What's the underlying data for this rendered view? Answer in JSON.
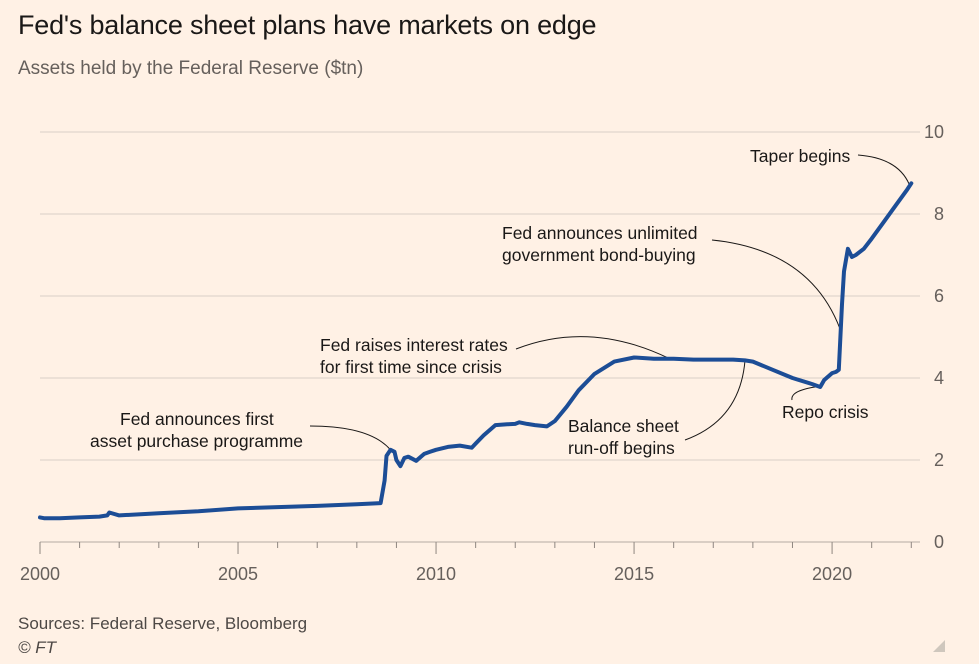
{
  "header": {
    "title": "Fed's balance sheet plans have markets on edge",
    "subtitle": "Assets held by the Federal Reserve ($tn)"
  },
  "footer": {
    "source": "Sources: Federal Reserve, Bloomberg",
    "copyright": "© FT"
  },
  "colors": {
    "background": "#fff1e5",
    "line": "#1c4d96",
    "gridline": "#d9d0c7",
    "axis_text": "#66605c",
    "annotation_text": "#1a1817"
  },
  "chart_data": {
    "type": "line",
    "title": "Fed's balance sheet plans have markets on edge",
    "subtitle": "Assets held by the Federal Reserve ($tn)",
    "xlim": [
      2000,
      2022.5
    ],
    "ylim": [
      0,
      10
    ],
    "x_ticks": [
      2000,
      2005,
      2010,
      2015,
      2020
    ],
    "x_tick_labels": [
      "2000",
      "2005",
      "2010",
      "2015",
      "2020"
    ],
    "y_ticks": [
      0,
      2,
      4,
      6,
      8,
      10
    ],
    "y_tick_labels": [
      "0",
      "2",
      "4",
      "6",
      "8",
      "10"
    ],
    "y_axis_position": "right",
    "grid": "horizontal",
    "series": [
      {
        "name": "",
        "color": "#1c4d96",
        "x": [
          2000.0,
          2000.1,
          2000.5,
          2001.0,
          2001.5,
          2001.7,
          2001.75,
          2002.0,
          2003.0,
          2004.0,
          2005.0,
          2006.0,
          2007.0,
          2008.0,
          2008.6,
          2008.7,
          2008.75,
          2008.85,
          2008.95,
          2009.0,
          2009.1,
          2009.2,
          2009.3,
          2009.5,
          2009.7,
          2009.85,
          2010.0,
          2010.3,
          2010.6,
          2010.9,
          2011.0,
          2011.2,
          2011.5,
          2011.8,
          2012.0,
          2012.1,
          2012.3,
          2012.5,
          2012.8,
          2013.0,
          2013.3,
          2013.6,
          2014.0,
          2014.5,
          2015.0,
          2015.5,
          2016.0,
          2016.5,
          2017.0,
          2017.5,
          2017.8,
          2018.0,
          2018.5,
          2019.0,
          2019.5,
          2019.7,
          2019.8,
          2020.0,
          2020.1,
          2020.17,
          2020.2,
          2020.25,
          2020.3,
          2020.4,
          2020.5,
          2020.6,
          2020.8,
          2021.0,
          2021.3,
          2021.6,
          2021.9,
          2022.0
        ],
        "y": [
          0.6,
          0.58,
          0.58,
          0.6,
          0.62,
          0.65,
          0.72,
          0.65,
          0.7,
          0.75,
          0.82,
          0.85,
          0.88,
          0.92,
          0.95,
          1.5,
          2.1,
          2.25,
          2.2,
          2.0,
          1.85,
          2.05,
          2.08,
          1.98,
          2.15,
          2.2,
          2.25,
          2.32,
          2.35,
          2.3,
          2.4,
          2.6,
          2.85,
          2.87,
          2.88,
          2.92,
          2.88,
          2.85,
          2.82,
          2.95,
          3.3,
          3.7,
          4.1,
          4.4,
          4.5,
          4.47,
          4.47,
          4.45,
          4.45,
          4.45,
          4.43,
          4.4,
          4.2,
          4.0,
          3.85,
          3.78,
          3.95,
          4.12,
          4.15,
          4.2,
          4.8,
          5.8,
          6.6,
          7.15,
          6.95,
          7.0,
          7.15,
          7.4,
          7.8,
          8.2,
          8.6,
          8.75
        ]
      }
    ],
    "annotations": [
      {
        "text": [
          "Fed announces first",
          "asset purchase programme"
        ],
        "target": [
          2008.85,
          2.25
        ]
      },
      {
        "text": [
          "Fed raises interest rates",
          "for first time since crisis"
        ],
        "target": [
          2015.9,
          4.47
        ]
      },
      {
        "text": [
          "Balance sheet",
          "run-off begins"
        ],
        "target": [
          2017.8,
          4.43
        ]
      },
      {
        "text": [
          "Fed announces unlimited",
          "government bond-buying"
        ],
        "target": [
          2020.2,
          5.2
        ]
      },
      {
        "text": [
          "Repo crisis"
        ],
        "target": [
          2019.7,
          3.8
        ]
      },
      {
        "text": [
          "Taper begins"
        ],
        "target": [
          2021.95,
          8.72
        ]
      }
    ]
  }
}
